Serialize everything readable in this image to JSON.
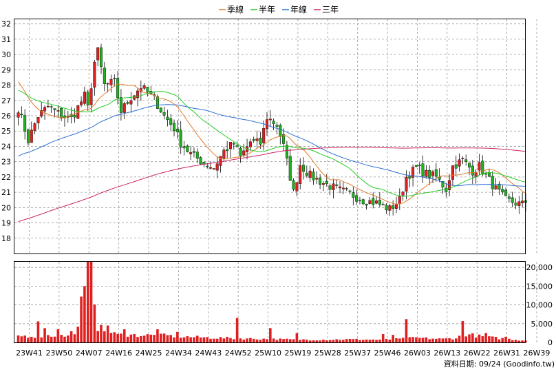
{
  "chart_data": {
    "type": "candlestick-with-volume",
    "legend": [
      {
        "name": "季線",
        "color": "#e07a2a"
      },
      {
        "name": "半年",
        "color": "#22cc22"
      },
      {
        "name": "年線",
        "color": "#2b6fd6"
      },
      {
        "name": "三年",
        "color": "#cc2266"
      }
    ],
    "colors": {
      "up": "#e02020",
      "down": "#20b020",
      "volume": "#e02020",
      "grid": "#999999"
    },
    "price_axis": {
      "ticks": [
        18,
        19,
        20,
        21,
        22,
        23,
        24,
        25,
        26,
        27,
        28,
        29,
        30,
        31,
        32
      ],
      "range": [
        17,
        32.3
      ]
    },
    "volume_axis": {
      "ticks": [
        0,
        5000,
        10000,
        15000,
        20000
      ],
      "tick_labels": [
        "0",
        "5,000",
        "10,000",
        "15,000",
        "20,000"
      ],
      "range": [
        0,
        21500
      ]
    },
    "x_ticks": [
      "23W41",
      "23W50",
      "24W07",
      "24W16",
      "24W25",
      "24W34",
      "24W43",
      "24W52",
      "25W10",
      "25W19",
      "25W28",
      "25W37",
      "25W46",
      "26W03",
      "26W13",
      "26W22",
      "26W31",
      "26W39"
    ],
    "weeks_between_ticks": 9,
    "price_anchors": [
      [
        0,
        26.5
      ],
      [
        3,
        24.4
      ],
      [
        6,
        26.0
      ],
      [
        9,
        26.6
      ],
      [
        13,
        26.0
      ],
      [
        16,
        25.8
      ],
      [
        20,
        27.3
      ],
      [
        21,
        26.5
      ],
      [
        23,
        29.5
      ],
      [
        24,
        30.2
      ],
      [
        26,
        28.0
      ],
      [
        29,
        28.2
      ],
      [
        31,
        26.3
      ],
      [
        34,
        27.2
      ],
      [
        37,
        27.9
      ],
      [
        41,
        27.1
      ],
      [
        44,
        26.0
      ],
      [
        47,
        25.2
      ],
      [
        49,
        24.2
      ],
      [
        52,
        23.5
      ],
      [
        56,
        22.9
      ],
      [
        59,
        22.6
      ],
      [
        62,
        23.7
      ],
      [
        65,
        24.2
      ],
      [
        67,
        23.3
      ],
      [
        70,
        24.3
      ],
      [
        73,
        24.2
      ],
      [
        75,
        25.9
      ],
      [
        78,
        25.4
      ],
      [
        80,
        24.0
      ],
      [
        83,
        21.0
      ],
      [
        85,
        22.8
      ],
      [
        88,
        22.1
      ],
      [
        92,
        21.6
      ],
      [
        96,
        21.2
      ],
      [
        100,
        20.9
      ],
      [
        104,
        20.5
      ],
      [
        108,
        20.3
      ],
      [
        112,
        19.9
      ],
      [
        115,
        20.5
      ],
      [
        117,
        22.0
      ],
      [
        120,
        22.6
      ],
      [
        123,
        22.2
      ],
      [
        126,
        22.0
      ],
      [
        129,
        21.2
      ],
      [
        131,
        22.7
      ],
      [
        134,
        23.1
      ],
      [
        137,
        22.4
      ],
      [
        139,
        22.7
      ],
      [
        142,
        21.8
      ],
      [
        144,
        21.2
      ],
      [
        147,
        20.5
      ],
      [
        150,
        20.3
      ],
      [
        152,
        20.2
      ],
      [
        153,
        20.4
      ]
    ],
    "volume_anchors": [
      [
        0,
        1700
      ],
      [
        5,
        1700
      ],
      [
        10,
        1800
      ],
      [
        15,
        1700
      ],
      [
        16,
        2600
      ],
      [
        18,
        3500
      ],
      [
        19,
        9800
      ],
      [
        20,
        12000
      ],
      [
        21,
        17000
      ],
      [
        22,
        20000
      ],
      [
        23,
        12500
      ],
      [
        24,
        4200
      ],
      [
        26,
        3000
      ],
      [
        30,
        2000
      ],
      [
        45,
        1800
      ],
      [
        50,
        1500
      ],
      [
        60,
        1200
      ],
      [
        65,
        1100
      ],
      [
        70,
        1000
      ],
      [
        80,
        800
      ],
      [
        90,
        700
      ],
      [
        100,
        800
      ],
      [
        110,
        700
      ],
      [
        115,
        900
      ],
      [
        120,
        1200
      ],
      [
        128,
        900
      ],
      [
        132,
        1200
      ],
      [
        135,
        2200
      ],
      [
        140,
        1500
      ],
      [
        145,
        1100
      ],
      [
        150,
        700
      ],
      [
        153,
        500
      ]
    ],
    "volume_spikes": [
      [
        6,
        5600
      ],
      [
        8,
        3800
      ],
      [
        12,
        3500
      ],
      [
        20,
        15000
      ],
      [
        22,
        21500
      ],
      [
        27,
        4500
      ],
      [
        32,
        3500
      ],
      [
        42,
        3500
      ],
      [
        48,
        2800
      ],
      [
        66,
        6500
      ],
      [
        76,
        3800
      ],
      [
        84,
        2500
      ],
      [
        110,
        2200
      ],
      [
        113,
        2000
      ],
      [
        117,
        6200
      ],
      [
        134,
        5700
      ],
      [
        141,
        2500
      ],
      [
        147,
        1500
      ]
    ],
    "source": "資料日期: 09/24  (Goodinfo.tw)"
  }
}
